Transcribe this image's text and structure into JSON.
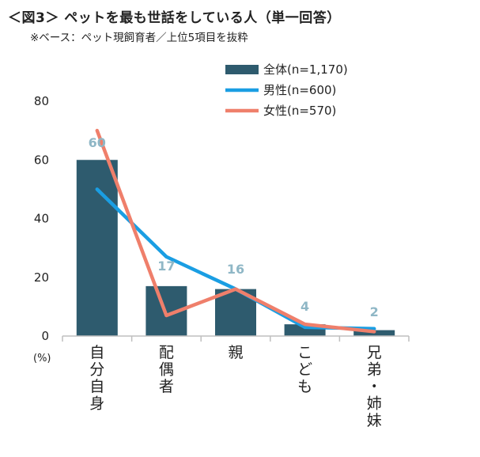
{
  "header": {
    "title": "＜図3＞ ペットを最も世話をしている人（単一回答）",
    "subtitle": "※ベース：ペット現飼育者／上位5項目を抜粋"
  },
  "chart_data": {
    "type": "bar",
    "categories": [
      "自分自身",
      "配偶者",
      "親",
      "こども",
      "兄弟・姉妹"
    ],
    "series": [
      {
        "name": "全体(n=1,170)",
        "kind": "bar",
        "color": "#2e5b6e",
        "values": [
          60,
          17,
          16,
          4,
          2
        ]
      },
      {
        "name": "男性(n=600)",
        "kind": "line",
        "color": "#1a9ee3",
        "values": [
          50,
          27,
          16,
          3,
          2.5
        ]
      },
      {
        "name": "女性(n=570)",
        "kind": "line",
        "color": "#ef7f6b",
        "values": [
          70,
          7,
          16,
          4,
          1.5
        ]
      }
    ],
    "data_labels": [
      "60",
      "17",
      "16",
      "4",
      "2"
    ],
    "ylabel": "(%)",
    "ylim": [
      0,
      80
    ],
    "yticks": [
      "0",
      "20",
      "40",
      "60",
      "80"
    ],
    "legend": "top-right",
    "label_color": "#8fb7c6",
    "axis_color": "#bfbfbf"
  }
}
